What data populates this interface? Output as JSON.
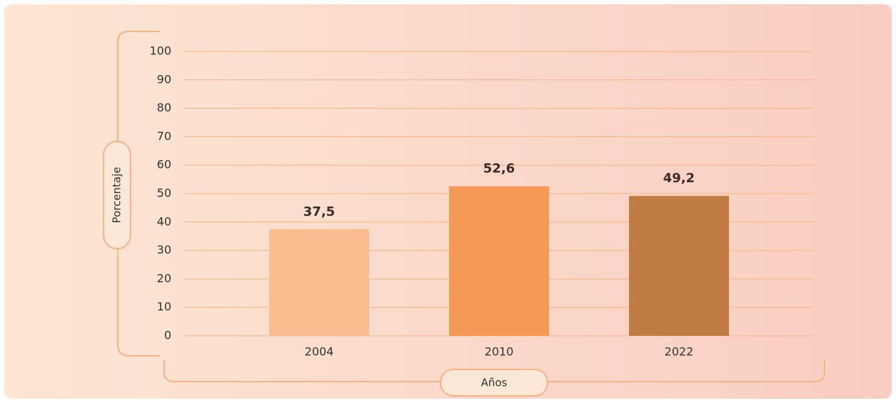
{
  "chart_data": {
    "type": "bar",
    "categories": [
      "2004",
      "2010",
      "2022"
    ],
    "values": [
      37.5,
      52.6,
      49.2
    ],
    "value_labels": [
      "37,5",
      "52,6",
      "49,2"
    ],
    "colors": [
      "#f9bd8f",
      "#f49a56",
      "#c07b42"
    ],
    "ylim": [
      0,
      100
    ],
    "yticks": [
      0,
      10,
      20,
      30,
      40,
      50,
      60,
      70,
      80,
      90,
      100
    ],
    "grid": true,
    "y_label": "Porcentaje",
    "x_label": "Años"
  }
}
